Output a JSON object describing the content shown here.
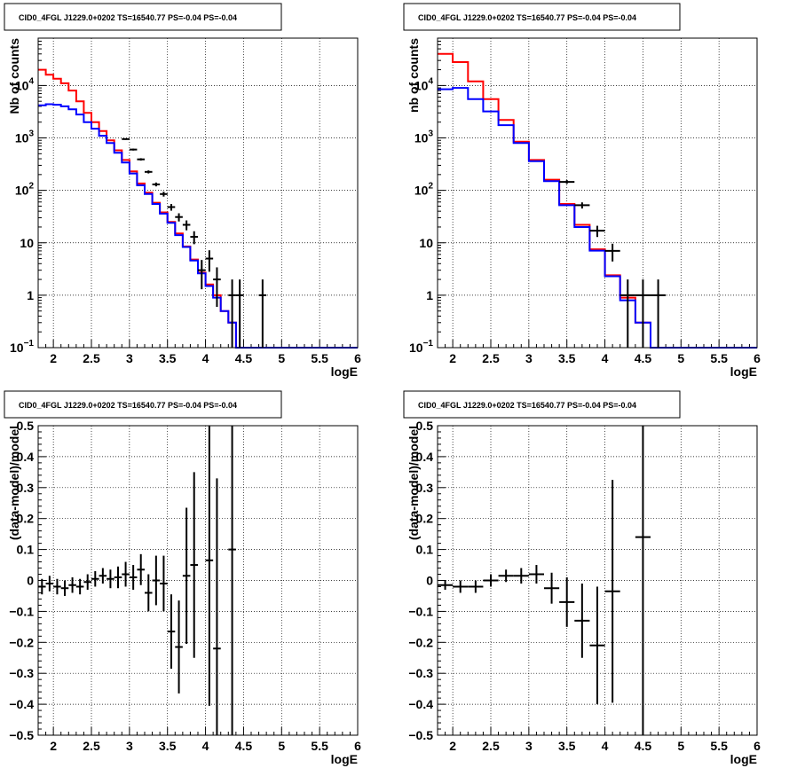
{
  "colors": {
    "model": "#ff0000",
    "model_alt": "#0000ff",
    "data": "#000000",
    "grid": "#000000"
  },
  "chart_data": [
    {
      "type": "step",
      "title": "CID0_4FGL J1229.0+0202 TS=16540.77 PS=-0.04 PS=-0.04",
      "xlabel": "logE",
      "ylabel": "Nb of counts",
      "xlim": [
        1.8,
        6.0
      ],
      "ylim": [
        0.1,
        80000
      ],
      "log_y": true,
      "grid": true,
      "xticks": [
        2,
        2.5,
        3,
        3.5,
        4,
        4.5,
        5,
        5.5,
        6
      ],
      "xtick_labels": [
        "2",
        "2.5",
        "3",
        "3.5",
        "4",
        "4.5",
        "5",
        "5.5",
        "6"
      ],
      "yticks": [
        0.1,
        1,
        10,
        100,
        1000,
        10000
      ],
      "ytick_labels": [
        {
          "base": "10",
          "exp": "−1"
        },
        {
          "base": "1",
          "exp": ""
        },
        {
          "base": "10",
          "exp": ""
        },
        {
          "base": "10",
          "exp": "2"
        },
        {
          "base": "10",
          "exp": "3"
        },
        {
          "base": "10",
          "exp": "4"
        }
      ],
      "bin_width": 0.1,
      "bin_edges_start": 1.8,
      "series": [
        {
          "role": "red",
          "values": [
            20000,
            16000,
            13500,
            11000,
            8000,
            5000,
            3000,
            2000,
            1350,
            900,
            580,
            380,
            230,
            135,
            90,
            58,
            38,
            25,
            15,
            8.5,
            4.8,
            2.7,
            1.6,
            1.0,
            0.5,
            0.3,
            0.1,
            0.1,
            0.1,
            0.1,
            0.1,
            0.1,
            0.1,
            0.1,
            0.1,
            0.1,
            0.1,
            0.1,
            0.1,
            0.1,
            0.1,
            0.1
          ]
        },
        {
          "role": "blue",
          "values": [
            4200,
            4400,
            4300,
            4000,
            3500,
            2800,
            2000,
            1500,
            1100,
            800,
            520,
            340,
            210,
            125,
            85,
            55,
            36,
            24,
            14,
            8.3,
            4.6,
            2.6,
            1.5,
            0.9,
            0.5,
            0.3,
            0.1,
            0.1,
            0.1,
            0.1,
            0.1,
            0.1,
            0.1,
            0.1,
            0.1,
            0.1,
            0.1,
            0.1,
            0.1,
            0.1,
            0.1,
            0.1
          ]
        }
      ],
      "points": [
        {
          "x": 2.95,
          "y": 950,
          "lo": 920,
          "hi": 980
        },
        {
          "x": 3.05,
          "y": 600,
          "lo": 575,
          "hi": 625
        },
        {
          "x": 3.15,
          "y": 390,
          "lo": 370,
          "hi": 410
        },
        {
          "x": 3.25,
          "y": 225,
          "lo": 210,
          "hi": 240
        },
        {
          "x": 3.35,
          "y": 130,
          "lo": 119,
          "hi": 141
        },
        {
          "x": 3.45,
          "y": 85,
          "lo": 76,
          "hi": 94
        },
        {
          "x": 3.55,
          "y": 48,
          "lo": 41,
          "hi": 55
        },
        {
          "x": 3.65,
          "y": 31,
          "lo": 25.5,
          "hi": 36.5
        },
        {
          "x": 3.75,
          "y": 22,
          "lo": 17.3,
          "hi": 26.7
        },
        {
          "x": 3.85,
          "y": 13,
          "lo": 9.4,
          "hi": 16.6
        },
        {
          "x": 3.95,
          "y": 3,
          "lo": 1.3,
          "hi": 4.7
        },
        {
          "x": 4.05,
          "y": 5,
          "lo": 2.8,
          "hi": 7.2
        },
        {
          "x": 4.15,
          "y": 2,
          "lo": 0.6,
          "hi": 3.4
        },
        {
          "x": 4.35,
          "y": 1,
          "lo": 0.1,
          "hi": 2.0
        },
        {
          "x": 4.45,
          "y": 1,
          "lo": 0.1,
          "hi": 2.0
        },
        {
          "x": 4.75,
          "y": 1,
          "lo": 0.1,
          "hi": 2.0
        }
      ]
    },
    {
      "type": "step",
      "title": "CID0_4FGL J1229.0+0202 TS=16540.77 PS=-0.04 PS=-0.04",
      "xlabel": "logE",
      "ylabel": "nb of counts",
      "xlim": [
        1.8,
        6.0
      ],
      "ylim": [
        0.1,
        80000
      ],
      "log_y": true,
      "grid": true,
      "xticks": [
        2,
        2.5,
        3,
        3.5,
        4,
        4.5,
        5,
        5.5,
        6
      ],
      "xtick_labels": [
        "2",
        "2.5",
        "3",
        "3.5",
        "4",
        "4.5",
        "5",
        "5.5",
        "6"
      ],
      "yticks": [
        0.1,
        1,
        10,
        100,
        1000,
        10000
      ],
      "ytick_labels": [
        {
          "base": "10",
          "exp": "−1"
        },
        {
          "base": "1",
          "exp": ""
        },
        {
          "base": "10",
          "exp": ""
        },
        {
          "base": "10",
          "exp": "2"
        },
        {
          "base": "10",
          "exp": "3"
        },
        {
          "base": "10",
          "exp": "4"
        }
      ],
      "bin_width": 0.2,
      "bin_edges_start": 1.8,
      "series": [
        {
          "role": "red",
          "values": [
            40000,
            28000,
            12000,
            5500,
            2200,
            850,
            380,
            160,
            55,
            22,
            7.5,
            2.4,
            0.9,
            0.3,
            0.1,
            0.1,
            0.1,
            0.1,
            0.1,
            0.1,
            0.1
          ]
        },
        {
          "role": "blue",
          "values": [
            8500,
            9000,
            5500,
            3200,
            1750,
            800,
            360,
            150,
            52,
            20,
            7.1,
            2.3,
            0.8,
            0.3,
            0.1,
            0.1,
            0.1,
            0.1,
            0.1,
            0.1,
            0.1
          ]
        }
      ],
      "points": [
        {
          "x": 3.5,
          "y": 145,
          "lo": 133,
          "hi": 157
        },
        {
          "x": 3.7,
          "y": 52,
          "lo": 45,
          "hi": 59
        },
        {
          "x": 3.9,
          "y": 17,
          "lo": 12.9,
          "hi": 21.1
        },
        {
          "x": 4.1,
          "y": 7,
          "lo": 4.4,
          "hi": 9.6
        },
        {
          "x": 4.3,
          "y": 1,
          "lo": 0.1,
          "hi": 2.0
        },
        {
          "x": 4.5,
          "y": 1,
          "lo": 0.1,
          "hi": 2.0
        },
        {
          "x": 4.7,
          "y": 1,
          "lo": 0.1,
          "hi": 2.0
        }
      ]
    },
    {
      "type": "scatter",
      "title": "CID0_4FGL J1229.0+0202 TS=16540.77 PS=-0.04 PS=-0.04",
      "xlabel": "logE",
      "ylabel": "(data-model)/model",
      "xlim": [
        1.8,
        6.0
      ],
      "ylim": [
        -0.5,
        0.5
      ],
      "log_y": false,
      "grid": true,
      "xticks": [
        2,
        2.5,
        3,
        3.5,
        4,
        4.5,
        5,
        5.5,
        6
      ],
      "xtick_labels": [
        "2",
        "2.5",
        "3",
        "3.5",
        "4",
        "4.5",
        "5",
        "5.5",
        "6"
      ],
      "yticks": [
        -0.5,
        -0.4,
        -0.3,
        -0.2,
        -0.1,
        0,
        0.1,
        0.2,
        0.3,
        0.4,
        0.5
      ],
      "ytick_labels": [
        "−0.5",
        "−0.4",
        "−0.3",
        "−0.2",
        "−0.1",
        "0",
        "0.1",
        "0.2",
        "0.3",
        "0.4",
        "0.5"
      ],
      "half_width": 0.05,
      "points": [
        {
          "x": 1.85,
          "y": -0.02,
          "err": 0.025
        },
        {
          "x": 1.95,
          "y": -0.01,
          "err": 0.025
        },
        {
          "x": 2.05,
          "y": -0.02,
          "err": 0.025
        },
        {
          "x": 2.15,
          "y": -0.025,
          "err": 0.025
        },
        {
          "x": 2.25,
          "y": -0.015,
          "err": 0.025
        },
        {
          "x": 2.35,
          "y": -0.02,
          "err": 0.025
        },
        {
          "x": 2.45,
          "y": -0.005,
          "err": 0.025
        },
        {
          "x": 2.55,
          "y": 0.005,
          "err": 0.025
        },
        {
          "x": 2.65,
          "y": 0.015,
          "err": 0.025
        },
        {
          "x": 2.75,
          "y": 0.005,
          "err": 0.03
        },
        {
          "x": 2.85,
          "y": 0.01,
          "err": 0.035
        },
        {
          "x": 2.95,
          "y": 0.02,
          "err": 0.04
        },
        {
          "x": 3.05,
          "y": 0.01,
          "err": 0.04
        },
        {
          "x": 3.15,
          "y": 0.035,
          "err": 0.05
        },
        {
          "x": 3.25,
          "y": -0.04,
          "err": 0.06
        },
        {
          "x": 3.35,
          "y": 0.0,
          "err": 0.08
        },
        {
          "x": 3.45,
          "y": -0.01,
          "err": 0.09
        },
        {
          "x": 3.55,
          "y": -0.165,
          "err": 0.12
        },
        {
          "x": 3.65,
          "y": -0.215,
          "err": 0.15
        },
        {
          "x": 3.75,
          "y": 0.015,
          "err": 0.22
        },
        {
          "x": 3.85,
          "y": 0.05,
          "err": 0.3
        },
        {
          "x": 4.05,
          "y": 0.065,
          "err": 0.47
        },
        {
          "x": 4.15,
          "y": -0.22,
          "err": 0.55
        },
        {
          "x": 4.35,
          "y": 0.1,
          "err": 1.0
        }
      ]
    },
    {
      "type": "scatter",
      "title": "CID0_4FGL J1229.0+0202 TS=16540.77 PS=-0.04 PS=-0.04",
      "xlabel": "logE",
      "ylabel": "(data-model)/model",
      "xlim": [
        1.8,
        6.0
      ],
      "ylim": [
        -0.5,
        0.5
      ],
      "log_y": false,
      "grid": true,
      "xticks": [
        2,
        2.5,
        3,
        3.5,
        4,
        4.5,
        5,
        5.5,
        6
      ],
      "xtick_labels": [
        "2",
        "2.5",
        "3",
        "3.5",
        "4",
        "4.5",
        "5",
        "5.5",
        "6"
      ],
      "yticks": [
        -0.5,
        -0.4,
        -0.3,
        -0.2,
        -0.1,
        0,
        0.1,
        0.2,
        0.3,
        0.4,
        0.5
      ],
      "ytick_labels": [
        "−0.5",
        "−0.4",
        "−0.3",
        "−0.2",
        "−0.1",
        "0",
        "0.1",
        "0.2",
        "0.3",
        "0.4",
        "0.5"
      ],
      "half_width": 0.1,
      "points": [
        {
          "x": 1.9,
          "y": -0.015,
          "err": 0.015
        },
        {
          "x": 2.1,
          "y": -0.02,
          "err": 0.02
        },
        {
          "x": 2.3,
          "y": -0.02,
          "err": 0.02
        },
        {
          "x": 2.5,
          "y": 0.0,
          "err": 0.02
        },
        {
          "x": 2.7,
          "y": 0.015,
          "err": 0.02
        },
        {
          "x": 2.9,
          "y": 0.015,
          "err": 0.025
        },
        {
          "x": 3.1,
          "y": 0.02,
          "err": 0.03
        },
        {
          "x": 3.3,
          "y": -0.025,
          "err": 0.05
        },
        {
          "x": 3.5,
          "y": -0.07,
          "err": 0.08
        },
        {
          "x": 3.7,
          "y": -0.13,
          "err": 0.12
        },
        {
          "x": 3.9,
          "y": -0.21,
          "err": 0.19
        },
        {
          "x": 4.1,
          "y": -0.035,
          "err": 0.36
        },
        {
          "x": 4.5,
          "y": 0.14,
          "err": 0.95
        }
      ]
    }
  ]
}
